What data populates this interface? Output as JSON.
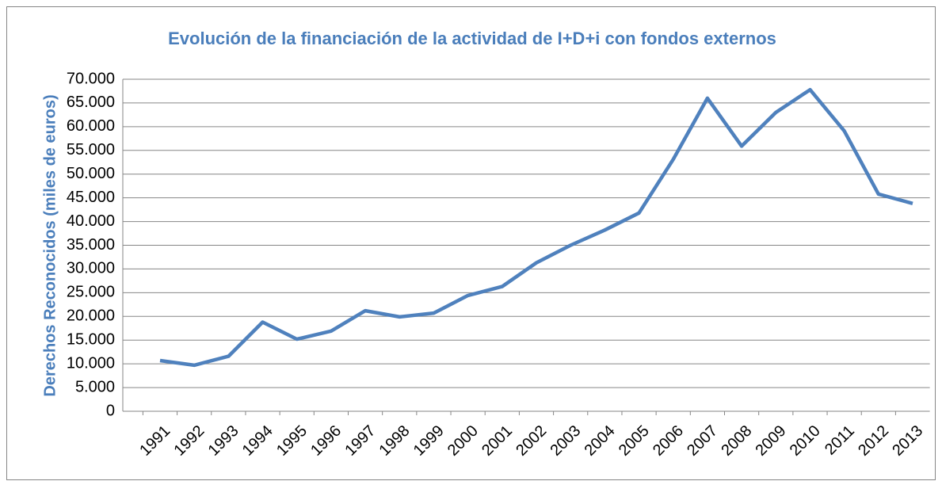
{
  "chart_data": {
    "type": "line",
    "title": "Evolución de la financiación de la actividad de I+D+i con fondos externos",
    "y_label": "Derechos Reconocidos (miles de euros)",
    "categories": [
      "1991",
      "1992",
      "1993",
      "1994",
      "1995",
      "1996",
      "1997",
      "1998",
      "1999",
      "2000",
      "2001",
      "2002",
      "2003",
      "2004",
      "2005",
      "2006",
      "2007",
      "2008",
      "2009",
      "2010",
      "2011",
      "2012",
      "2013"
    ],
    "series": [
      {
        "name": "Derechos Reconocidos",
        "color": "#4f81bd",
        "values": [
          10700,
          9700,
          11600,
          18800,
          15200,
          16900,
          21200,
          19900,
          20700,
          24400,
          26300,
          31300,
          35000,
          38200,
          41800,
          53100,
          66000,
          55900,
          63000,
          67800,
          59100,
          45800,
          43800
        ]
      }
    ],
    "ylim": [
      0,
      70000
    ],
    "yticks": [
      0,
      {
        "value": 5000,
        "label": "5.000"
      },
      {
        "value": 10000,
        "label": "10.000"
      },
      {
        "value": 15000,
        "label": "15.000"
      },
      {
        "value": 20000,
        "label": "20.000"
      },
      {
        "value": 25000,
        "label": "25.000"
      },
      {
        "value": 30000,
        "label": "30.000"
      },
      {
        "value": 35000,
        "label": "35.000"
      },
      {
        "value": 40000,
        "label": "40.000"
      },
      {
        "value": 45000,
        "label": "45.000"
      },
      {
        "value": 50000,
        "label": "50.000"
      },
      {
        "value": 55000,
        "label": "55.000"
      },
      {
        "value": 60000,
        "label": "60.000"
      },
      {
        "value": 65000,
        "label": "65.000"
      },
      {
        "value": 70000,
        "label": "70.000"
      }
    ],
    "grid": true
  }
}
